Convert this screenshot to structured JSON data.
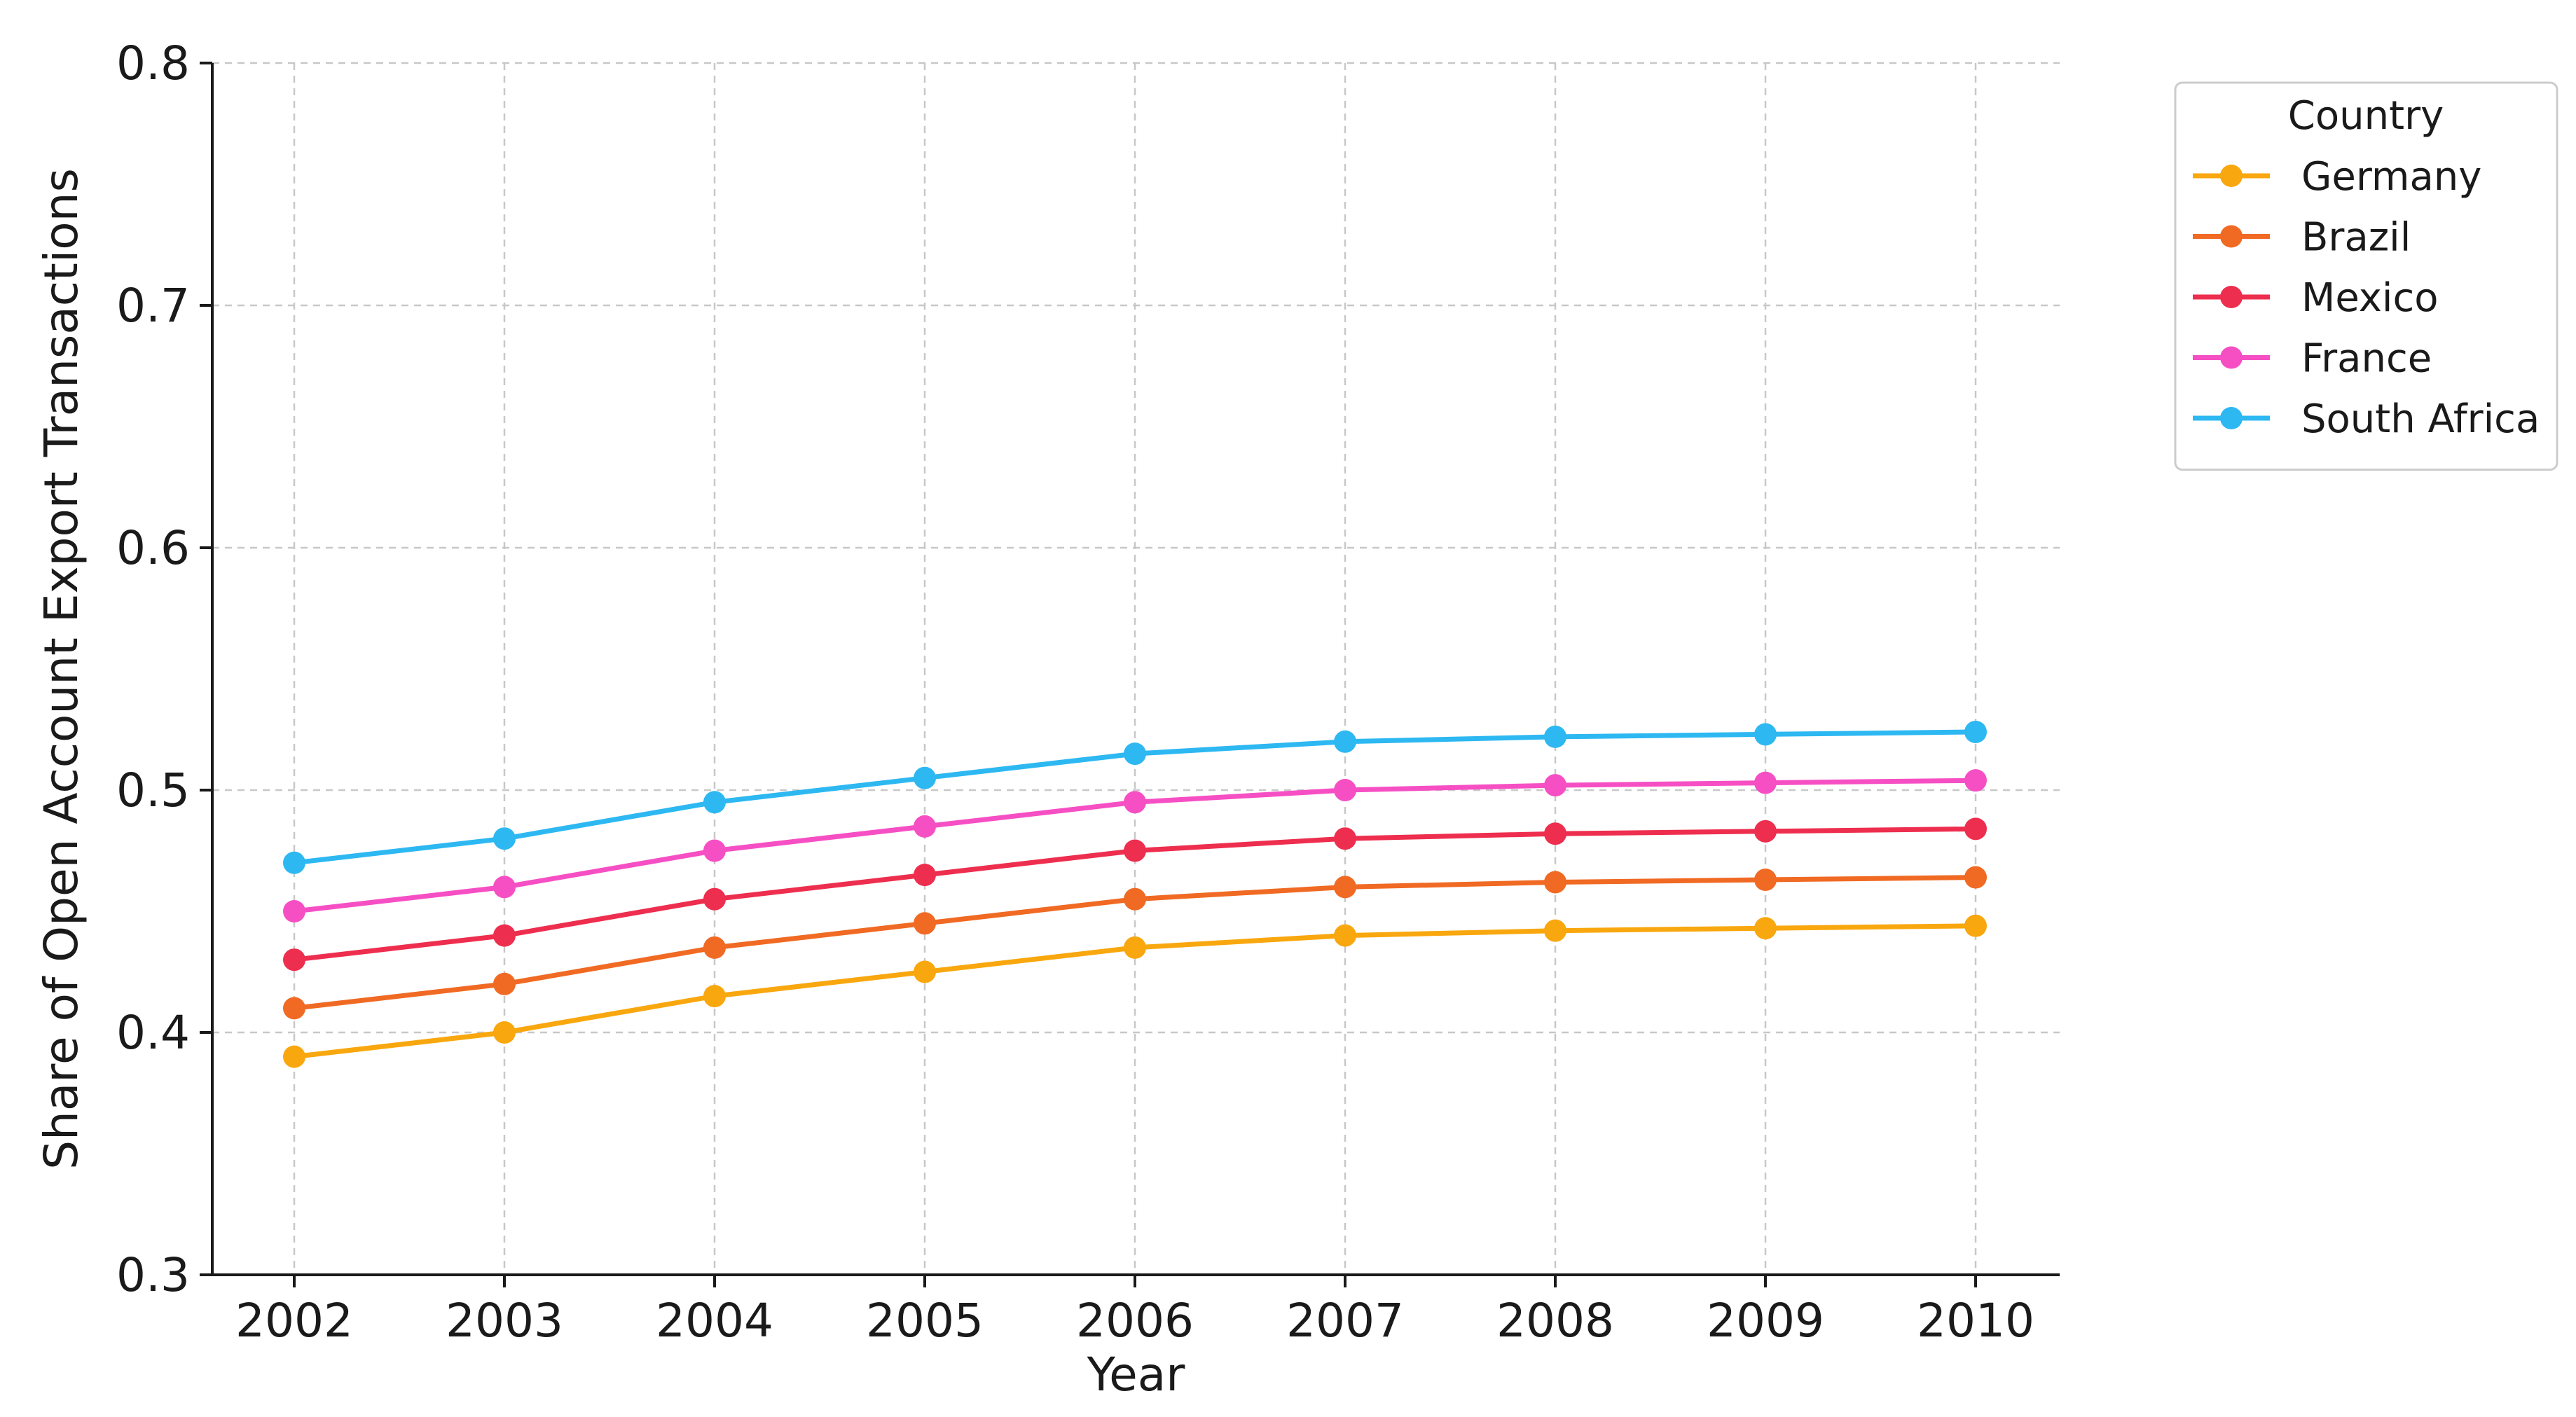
{
  "chart_data": {
    "type": "line",
    "title": "",
    "xlabel": "Year",
    "ylabel": "Share of Open Account Export Transactions",
    "x": [
      2002,
      2003,
      2004,
      2005,
      2006,
      2007,
      2008,
      2009,
      2010
    ],
    "x_tick_labels": [
      "2002",
      "2003",
      "2004",
      "2005",
      "2006",
      "2007",
      "2008",
      "2009",
      "2010"
    ],
    "ylim": [
      0.3,
      0.8
    ],
    "y_ticks": [
      0.3,
      0.4,
      0.5,
      0.6,
      0.7,
      0.8
    ],
    "y_tick_labels": [
      "0.3",
      "0.4",
      "0.5",
      "0.6",
      "0.7",
      "0.8"
    ],
    "grid": true,
    "legend": {
      "title": "Country",
      "placement": "outside-top-right"
    },
    "series": [
      {
        "name": "Germany",
        "color": "#F9A70E",
        "values": [
          0.39,
          0.4,
          0.415,
          0.425,
          0.435,
          0.44,
          0.442,
          0.443,
          0.444
        ]
      },
      {
        "name": "Brazil",
        "color": "#F06A24",
        "values": [
          0.41,
          0.42,
          0.435,
          0.445,
          0.455,
          0.46,
          0.462,
          0.463,
          0.464
        ]
      },
      {
        "name": "Mexico",
        "color": "#EE2E4E",
        "values": [
          0.43,
          0.44,
          0.455,
          0.465,
          0.475,
          0.48,
          0.482,
          0.483,
          0.484
        ]
      },
      {
        "name": "France",
        "color": "#F64FC4",
        "values": [
          0.45,
          0.46,
          0.475,
          0.485,
          0.495,
          0.5,
          0.502,
          0.503,
          0.504
        ]
      },
      {
        "name": "South Africa",
        "color": "#2DB8F2",
        "values": [
          0.47,
          0.48,
          0.495,
          0.505,
          0.515,
          0.52,
          0.522,
          0.523,
          0.524
        ]
      }
    ]
  }
}
